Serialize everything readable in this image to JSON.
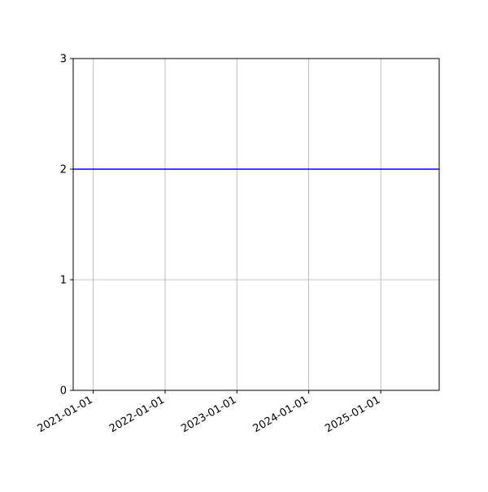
{
  "chart_data": {
    "type": "line",
    "title": "",
    "xlabel": "",
    "ylabel": "",
    "x_axis_type": "date",
    "xlim": [
      "2020-09-21",
      "2025-10-25"
    ],
    "ylim": [
      0,
      3
    ],
    "x_ticks": [
      "2021-01-01",
      "2022-01-01",
      "2023-01-01",
      "2024-01-01",
      "2025-01-01"
    ],
    "y_ticks": [
      "0",
      "1",
      "2",
      "3"
    ],
    "grid": true,
    "series": [
      {
        "x": [
          "2020-09-21",
          "2025-10-25"
        ],
        "y": [
          2,
          2
        ],
        "color": "#0000ff"
      }
    ],
    "colors": {
      "line": "#0000ff",
      "grid": "#b0b0b0",
      "axes": "#000000"
    }
  }
}
